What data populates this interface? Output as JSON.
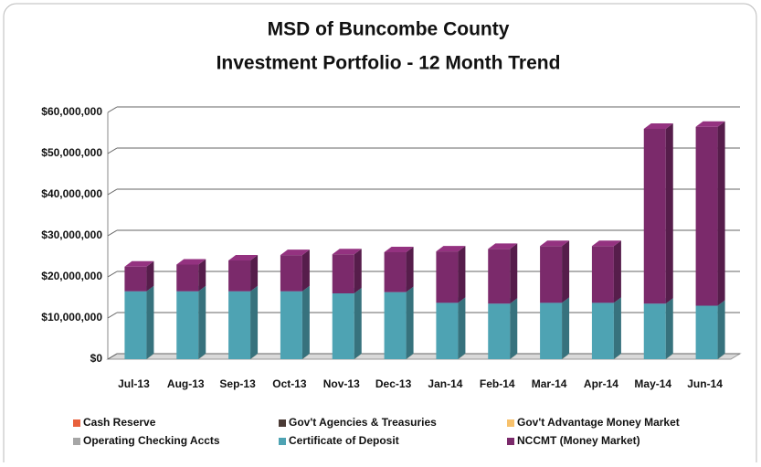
{
  "chart_data": {
    "type": "bar3d_stacked",
    "title": "MSD of Buncombe County",
    "subtitle": "Investment Portfolio - 12 Month Trend",
    "categories": [
      "Jul-13",
      "Aug-13",
      "Sep-13",
      "Oct-13",
      "Nov-13",
      "Dec-13",
      "Jan-14",
      "Feb-14",
      "Mar-14",
      "Apr-14",
      "May-14",
      "Jun-14"
    ],
    "series": [
      {
        "name": "Cash  Reserve",
        "color": "#e8603c",
        "values": [
          0,
          0,
          0,
          0,
          0,
          0,
          0,
          0,
          0,
          0,
          0,
          0
        ]
      },
      {
        "name": "Gov't Agencies & Treasuries",
        "color": "#4a3a35",
        "values": [
          0,
          0,
          0,
          0,
          0,
          0,
          0,
          0,
          0,
          0,
          0,
          0
        ]
      },
      {
        "name": "Gov't Advantage Money Market",
        "color": "#f7c16b",
        "values": [
          0,
          0,
          0,
          0,
          0,
          0,
          0,
          0,
          0,
          0,
          0,
          0
        ]
      },
      {
        "name": "Operating Checking Accts",
        "color": "#a6a6a6",
        "values": [
          0,
          0,
          0,
          0,
          0,
          0,
          0,
          0,
          0,
          0,
          0,
          0
        ]
      },
      {
        "name": "Certificate of Deposit",
        "color": "#4ea3b3",
        "values": [
          16500000,
          16500000,
          16500000,
          16500000,
          16000000,
          16300000,
          13700000,
          13500000,
          13700000,
          13700000,
          13500000,
          13000000
        ]
      },
      {
        "name": "NCCMT (Money Market)",
        "color": "#7b2a6b",
        "values": [
          6000000,
          6500000,
          7500000,
          8800000,
          9500000,
          9700000,
          12500000,
          13300000,
          13800000,
          13800000,
          42500000,
          43500000
        ]
      }
    ],
    "ylim": [
      0,
      60000000
    ],
    "yticks": [
      {
        "value": 0,
        "label": "$0"
      },
      {
        "value": 10000000,
        "label": "$10,000,000"
      },
      {
        "value": 20000000,
        "label": "$20,000,000"
      },
      {
        "value": 30000000,
        "label": "$30,000,000"
      },
      {
        "value": 40000000,
        "label": "$40,000,000"
      },
      {
        "value": 50000000,
        "label": "$50,000,000"
      },
      {
        "value": 60000000,
        "label": "$60,000,000"
      }
    ],
    "grid": true,
    "legend": "bottom"
  }
}
